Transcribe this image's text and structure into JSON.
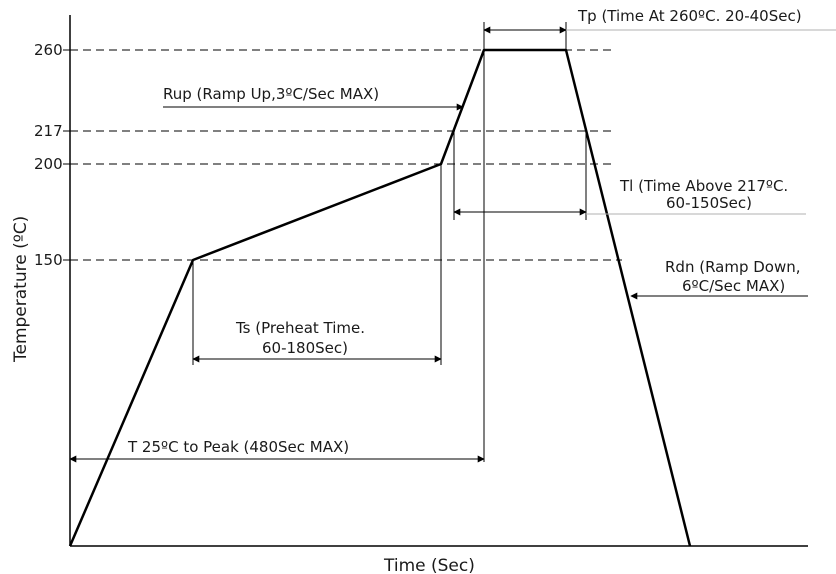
{
  "axes": {
    "x_label": "Time (Sec)",
    "y_label": "Temperature (ºC)",
    "y_ticks": [
      "260",
      "217",
      "200",
      "150"
    ]
  },
  "annotations": {
    "tp": "Tp (Time At 260ºC. 20-40Sec)",
    "rup": "Rup (Ramp Up,3ºC/Sec MAX)",
    "tl_line1": "Tl (Time Above 217ºC.",
    "tl_line2": "60-150Sec)",
    "rdn_line1": "Rdn (Ramp Down,",
    "rdn_line2": "6ºC/Sec MAX)",
    "ts_line1": "Ts (Preheat Time.",
    "ts_line2": "60-180Sec)",
    "t25": "T 25ºC to Peak (480Sec MAX)"
  },
  "colors": {
    "line": "#000000",
    "guide": "#b0b0b0"
  }
}
